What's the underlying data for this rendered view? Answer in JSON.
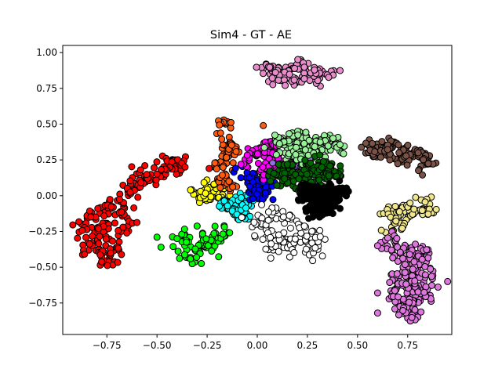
{
  "chart_data": {
    "type": "scatter",
    "title": "Sim4 - GT - AE",
    "xlabel": "",
    "ylabel": "",
    "xlim": [
      -0.97,
      0.97
    ],
    "ylim": [
      -0.97,
      1.05
    ],
    "xticks": [
      -0.75,
      -0.5,
      -0.25,
      0.0,
      0.25,
      0.5,
      0.75
    ],
    "xtick_labels": [
      "−0.75",
      "−0.50",
      "−0.25",
      "0.00",
      "0.25",
      "0.50",
      "0.75"
    ],
    "yticks": [
      -0.75,
      -0.5,
      -0.25,
      0.0,
      0.25,
      0.5,
      0.75,
      1.0
    ],
    "ytick_labels": [
      "−0.75",
      "−0.50",
      "−0.25",
      "0.00",
      "0.25",
      "0.50",
      "0.75",
      "1.00"
    ],
    "grid": false,
    "marker_edge_color": "#000000",
    "clusters": [
      {
        "color": "#ff0000",
        "n": 220,
        "points": [
          [
            -0.86,
            -0.2
          ],
          [
            -0.84,
            -0.32
          ],
          [
            -0.8,
            -0.38
          ],
          [
            -0.75,
            -0.45
          ],
          [
            -0.7,
            -0.35
          ],
          [
            -0.65,
            -0.2
          ],
          [
            -0.68,
            -0.05
          ],
          [
            -0.62,
            0.05
          ],
          [
            -0.55,
            0.1
          ],
          [
            -0.5,
            0.15
          ],
          [
            -0.45,
            0.2
          ],
          [
            -0.4,
            0.22
          ],
          [
            -0.78,
            -0.15
          ],
          [
            -0.72,
            -0.1
          ],
          [
            -0.76,
            -0.25
          ]
        ],
        "spread": [
          0.03,
          0.04
        ]
      },
      {
        "color": "#00ff00",
        "n": 80,
        "points": [
          [
            -0.34,
            -0.42
          ],
          [
            -0.3,
            -0.38
          ],
          [
            -0.26,
            -0.35
          ],
          [
            -0.22,
            -0.3
          ],
          [
            -0.2,
            -0.25
          ],
          [
            -0.28,
            -0.32
          ],
          [
            -0.36,
            -0.3
          ]
        ],
        "spread": [
          0.03,
          0.03
        ],
        "outliers": [
          [
            -0.5,
            -0.29
          ],
          [
            -0.48,
            -0.36
          ],
          [
            -0.4,
            -0.3
          ]
        ]
      },
      {
        "color": "#ffff00",
        "n": 70,
        "points": [
          [
            -0.28,
            0.0
          ],
          [
            -0.23,
            0.02
          ],
          [
            -0.19,
            0.05
          ],
          [
            -0.24,
            -0.02
          ],
          [
            -0.18,
            -0.01
          ],
          [
            -0.3,
            0.03
          ],
          [
            -0.21,
            0.08
          ]
        ],
        "spread": [
          0.03,
          0.02
        ]
      },
      {
        "color": "#ff5a10",
        "n": 80,
        "points": [
          [
            -0.16,
            0.5
          ],
          [
            -0.17,
            0.42
          ],
          [
            -0.15,
            0.35
          ],
          [
            -0.16,
            0.27
          ],
          [
            -0.18,
            0.2
          ],
          [
            -0.17,
            0.13
          ],
          [
            -0.14,
            0.07
          ],
          [
            -0.13,
            0.3
          ]
        ],
        "spread": [
          0.02,
          0.02
        ]
      },
      {
        "color": "#00ffff",
        "n": 60,
        "points": [
          [
            -0.13,
            -0.1
          ],
          [
            -0.1,
            -0.03
          ],
          [
            -0.06,
            0.0
          ],
          [
            -0.1,
            -0.14
          ],
          [
            -0.15,
            -0.05
          ],
          [
            -0.08,
            -0.07
          ]
        ],
        "spread": [
          0.025,
          0.025
        ]
      },
      {
        "color": "#0000ff",
        "n": 70,
        "points": [
          [
            -0.04,
            0.1
          ],
          [
            -0.02,
            0.05
          ],
          [
            0.0,
            0.0
          ],
          [
            0.03,
            0.08
          ],
          [
            0.06,
            0.02
          ],
          [
            -0.06,
            0.18
          ],
          [
            0.04,
            0.14
          ]
        ],
        "spread": [
          0.025,
          0.025
        ]
      },
      {
        "color": "#ff00ff",
        "n": 90,
        "points": [
          [
            -0.04,
            0.27
          ],
          [
            0.0,
            0.3
          ],
          [
            0.05,
            0.32
          ],
          [
            0.08,
            0.36
          ],
          [
            -0.02,
            0.22
          ],
          [
            0.04,
            0.18
          ],
          [
            0.07,
            0.26
          ]
        ],
        "spread": [
          0.025,
          0.025
        ]
      },
      {
        "color": "#9370db",
        "n": 45,
        "points": [
          [
            0.12,
            0.22
          ],
          [
            0.15,
            0.2
          ],
          [
            0.18,
            0.25
          ],
          [
            0.22,
            0.22
          ],
          [
            0.2,
            0.18
          ],
          [
            0.24,
            0.26
          ]
        ],
        "spread": [
          0.02,
          0.02
        ]
      },
      {
        "color": "#98f098",
        "n": 160,
        "points": [
          [
            0.12,
            0.38
          ],
          [
            0.16,
            0.35
          ],
          [
            0.2,
            0.4
          ],
          [
            0.25,
            0.37
          ],
          [
            0.3,
            0.35
          ],
          [
            0.34,
            0.4
          ],
          [
            0.38,
            0.34
          ],
          [
            0.28,
            0.3
          ],
          [
            0.18,
            0.3
          ],
          [
            0.22,
            0.28
          ]
        ],
        "spread": [
          0.03,
          0.025
        ]
      },
      {
        "color": "#006400",
        "n": 150,
        "points": [
          [
            0.1,
            0.15
          ],
          [
            0.15,
            0.1
          ],
          [
            0.2,
            0.12
          ],
          [
            0.25,
            0.18
          ],
          [
            0.3,
            0.22
          ],
          [
            0.35,
            0.2
          ],
          [
            0.38,
            0.15
          ],
          [
            0.32,
            0.1
          ],
          [
            0.22,
            0.05
          ],
          [
            0.14,
            0.2
          ]
        ],
        "spread": [
          0.03,
          0.025
        ]
      },
      {
        "color": "#000000",
        "n": 200,
        "points": [
          [
            0.25,
            0.05
          ],
          [
            0.28,
            -0.02
          ],
          [
            0.3,
            -0.08
          ],
          [
            0.32,
            -0.12
          ],
          [
            0.35,
            0.0
          ],
          [
            0.38,
            0.03
          ],
          [
            0.22,
            -0.01
          ],
          [
            0.3,
            0.04
          ],
          [
            0.36,
            -0.06
          ],
          [
            0.42,
            0.03
          ]
        ],
        "spread": [
          0.025,
          0.025
        ]
      },
      {
        "color": "#ffffff",
        "n": 130,
        "points": [
          [
            0.0,
            -0.2
          ],
          [
            0.05,
            -0.25
          ],
          [
            0.1,
            -0.3
          ],
          [
            0.15,
            -0.35
          ],
          [
            0.2,
            -0.32
          ],
          [
            0.25,
            -0.28
          ],
          [
            0.3,
            -0.3
          ],
          [
            0.2,
            -0.2
          ],
          [
            0.12,
            -0.15
          ],
          [
            0.05,
            -0.12
          ],
          [
            0.08,
            -0.38
          ],
          [
            0.28,
            -0.38
          ]
        ],
        "spread": [
          0.03,
          0.03
        ]
      },
      {
        "color": "#e88ccc",
        "n": 120,
        "points": [
          [
            0.05,
            0.9
          ],
          [
            0.1,
            0.88
          ],
          [
            0.15,
            0.86
          ],
          [
            0.2,
            0.9
          ],
          [
            0.25,
            0.85
          ],
          [
            0.3,
            0.88
          ],
          [
            0.35,
            0.86
          ],
          [
            0.18,
            0.8
          ],
          [
            0.28,
            0.8
          ],
          [
            0.12,
            0.82
          ],
          [
            0.22,
            0.93
          ]
        ],
        "spread": [
          0.025,
          0.02
        ]
      },
      {
        "color": "#7a5246",
        "n": 130,
        "points": [
          [
            0.58,
            0.3
          ],
          [
            0.62,
            0.33
          ],
          [
            0.66,
            0.35
          ],
          [
            0.7,
            0.3
          ],
          [
            0.75,
            0.32
          ],
          [
            0.8,
            0.28
          ],
          [
            0.85,
            0.22
          ],
          [
            0.72,
            0.25
          ],
          [
            0.64,
            0.28
          ],
          [
            0.56,
            0.35
          ],
          [
            0.82,
            0.3
          ]
        ],
        "spread": [
          0.025,
          0.025
        ]
      },
      {
        "color": "#f0e68c",
        "n": 80,
        "points": [
          [
            0.66,
            -0.1
          ],
          [
            0.7,
            -0.12
          ],
          [
            0.75,
            -0.08
          ],
          [
            0.8,
            -0.1
          ],
          [
            0.85,
            -0.12
          ],
          [
            0.72,
            -0.18
          ],
          [
            0.68,
            -0.25
          ],
          [
            0.84,
            -0.05
          ],
          [
            0.78,
            -0.15
          ]
        ],
        "spread": [
          0.025,
          0.025
        ]
      },
      {
        "color": "#dd77dd",
        "n": 220,
        "points": [
          [
            0.68,
            -0.35
          ],
          [
            0.72,
            -0.4
          ],
          [
            0.76,
            -0.45
          ],
          [
            0.8,
            -0.5
          ],
          [
            0.75,
            -0.55
          ],
          [
            0.72,
            -0.6
          ],
          [
            0.78,
            -0.65
          ],
          [
            0.82,
            -0.7
          ],
          [
            0.76,
            -0.75
          ],
          [
            0.72,
            -0.8
          ],
          [
            0.78,
            -0.85
          ],
          [
            0.82,
            -0.4
          ],
          [
            0.7,
            -0.7
          ],
          [
            0.85,
            -0.58
          ]
        ],
        "spread": [
          0.03,
          0.035
        ],
        "outliers": [
          [
            0.6,
            -0.82
          ],
          [
            0.6,
            -0.68
          ],
          [
            0.62,
            -0.37
          ],
          [
            0.6,
            -0.35
          ]
        ]
      }
    ],
    "extra_points": [
      {
        "color": "#ff5a10",
        "x": 0.03,
        "y": 0.49
      },
      {
        "color": "#ff0000",
        "x": -0.36,
        "y": 0.2
      },
      {
        "color": "#ff0000",
        "x": -0.24,
        "y": 0.19
      }
    ]
  }
}
